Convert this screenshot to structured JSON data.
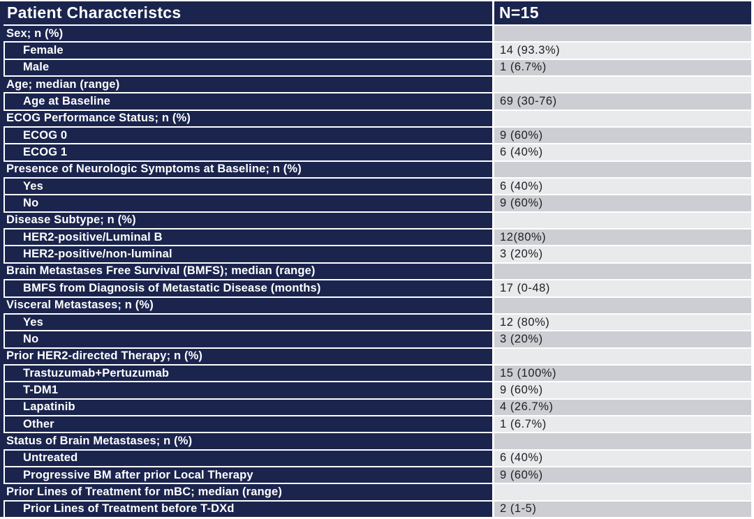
{
  "colors": {
    "navy": "#1a244d",
    "row_dark": "#cdced3",
    "row_light": "#e9eaec",
    "separator": "#ffffff",
    "label_text": "#ffffff",
    "value_text": "#202024"
  },
  "table": {
    "header": {
      "label": "Patient Characteristcs",
      "value": "N=15"
    },
    "rows": [
      {
        "type": "section",
        "label": "Sex; n (%)",
        "value": ""
      },
      {
        "type": "item",
        "label": "Female",
        "value": "14 (93.3%)"
      },
      {
        "type": "item",
        "label": "Male",
        "value": "1 (6.7%)"
      },
      {
        "type": "section",
        "label": "Age; median (range)",
        "value": ""
      },
      {
        "type": "item",
        "label": "Age at Baseline",
        "value": "69 (30-76)"
      },
      {
        "type": "section",
        "label": "ECOG Performance Status; n (%)",
        "value": ""
      },
      {
        "type": "item",
        "label": "ECOG 0",
        "value": "9 (60%)"
      },
      {
        "type": "item",
        "label": "ECOG 1",
        "value": "6 (40%)"
      },
      {
        "type": "section",
        "label": "Presence of Neurologic Symptoms at Baseline; n (%)",
        "value": ""
      },
      {
        "type": "item",
        "label": "Yes",
        "value": "6 (40%)"
      },
      {
        "type": "item",
        "label": "No",
        "value": "9 (60%)"
      },
      {
        "type": "section",
        "label": "Disease Subtype; n (%)",
        "value": ""
      },
      {
        "type": "item",
        "label": "HER2-positive/Luminal B",
        "value": "12(80%)"
      },
      {
        "type": "item",
        "label": "HER2-positive/non-luminal",
        "value": "3 (20%)"
      },
      {
        "type": "section",
        "label": "Brain Metastases Free Survival (BMFS); median (range)",
        "value": ""
      },
      {
        "type": "item",
        "label": "BMFS from Diagnosis of Metastatic Disease (months)",
        "value": "17 (0-48)"
      },
      {
        "type": "section",
        "label": "Visceral Metastases; n (%)",
        "value": ""
      },
      {
        "type": "item",
        "label": "Yes",
        "value": "12 (80%)"
      },
      {
        "type": "item",
        "label": "No",
        "value": "3 (20%)"
      },
      {
        "type": "section",
        "label": "Prior HER2-directed Therapy; n (%)",
        "value": ""
      },
      {
        "type": "item",
        "label": "Trastuzumab+Pertuzumab",
        "value": "15 (100%)"
      },
      {
        "type": "item",
        "label": "T-DM1",
        "value": "9 (60%)"
      },
      {
        "type": "item",
        "label": "Lapatinib",
        "value": "4 (26.7%)"
      },
      {
        "type": "item",
        "label": "Other",
        "value": "1 (6.7%)"
      },
      {
        "type": "section",
        "label": "Status of Brain Metastases; n (%)",
        "value": ""
      },
      {
        "type": "item",
        "label": "Untreated",
        "value": "6 (40%)"
      },
      {
        "type": "item",
        "label": "Progressive BM after prior Local Therapy",
        "value": "9 (60%)"
      },
      {
        "type": "section",
        "label": "Prior Lines of Treatment for mBC; median (range)",
        "value": ""
      },
      {
        "type": "item",
        "label": "Prior Lines of Treatment before T-DXd",
        "value": "2 (1-5)"
      }
    ]
  }
}
